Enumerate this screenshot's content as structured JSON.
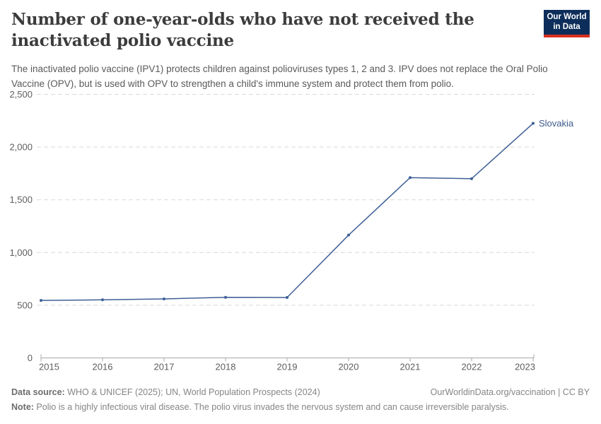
{
  "header": {
    "title": "Number of one-year-olds who have not received the inactivated polio vaccine",
    "subtitle": "The inactivated polio vaccine (IPV1) protects children against polioviruses types 1, 2 and 3. IPV does not replace the Oral Polio Vaccine (OPV), but is used with OPV to strengthen a child's immune system and protect them from polio.",
    "logo": {
      "line1": "Our World",
      "line2": "in Data",
      "bg_color": "#0d2e5a",
      "accent_color": "#d7301f"
    }
  },
  "chart_data": {
    "type": "line",
    "title": "Number of one-year-olds who have not received the inactivated polio vaccine",
    "categories": [
      "2015",
      "2016",
      "2017",
      "2018",
      "2019",
      "2020",
      "2021",
      "2022",
      "2023"
    ],
    "series": [
      {
        "name": "Slovakia",
        "values": [
          545,
          551,
          560,
          575,
          573,
          1165,
          1710,
          1700,
          2225
        ],
        "color": "#3e5f96"
      }
    ],
    "end_label": "Slovakia",
    "end_label_color": "#3d5a8c",
    "xlabel": "",
    "ylabel": "",
    "ylim": [
      0,
      2500
    ],
    "yticks": [
      0,
      500,
      1000,
      1500,
      2000,
      2500
    ],
    "ytick_labels": [
      "0",
      "500",
      "1,000",
      "1,500",
      "2,000",
      "2,500"
    ],
    "grid": "horizontal-dashed",
    "grid_color": "#d9d9d9",
    "axis_color": "#a8a8a8",
    "tick_label_color": "#5e5e5e",
    "legend_position": "end-of-line"
  },
  "footer": {
    "data_source_label": "Data source:",
    "data_source_text": " WHO & UNICEF (2025); UN, World Population Prospects (2024)",
    "link_text": "OurWorldinData.org/vaccination | CC BY",
    "note_label": "Note:",
    "note_text": " Polio is a highly infectious viral disease. The polio virus invades the nervous system and can cause irreversible paralysis."
  }
}
